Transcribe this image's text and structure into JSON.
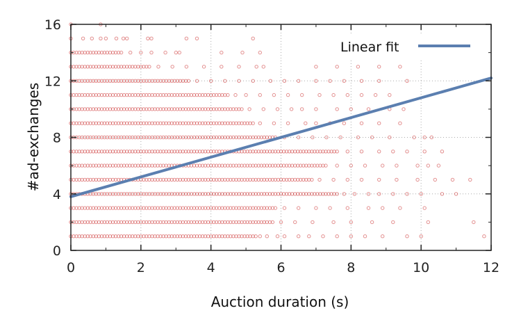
{
  "chart_data": {
    "type": "scatter",
    "xlabel": "Auction duration (s)",
    "ylabel": "#ad-exchanges",
    "xlim": [
      0,
      12
    ],
    "ylim": [
      0,
      16
    ],
    "x_ticks": [
      "0",
      "2",
      "4",
      "6",
      "8",
      "10",
      "12"
    ],
    "y_ticks": [
      "0",
      "4",
      "8",
      "12",
      "16"
    ],
    "grid": true,
    "legend_position": "top-right",
    "point_color": "#cc3333",
    "fit_color": "#5b7fb0",
    "series": [
      {
        "kind": "scatter",
        "levels": [
          {
            "y": 1,
            "dense_to": 5.3,
            "sparse_x": [
              5.4,
              5.6,
              5.9,
              6.1,
              6.5,
              6.8,
              7.2,
              7.6,
              8.0,
              8.4,
              8.9,
              9.6,
              10.0,
              11.8
            ]
          },
          {
            "y": 2,
            "dense_to": 5.8,
            "sparse_x": [
              6.0,
              6.4,
              6.9,
              7.5,
              8.0,
              8.6,
              9.2,
              10.2,
              11.5
            ]
          },
          {
            "y": 3,
            "dense_to": 5.9,
            "sparse_x": [
              6.1,
              6.5,
              7.0,
              7.4,
              7.9,
              8.5,
              8.9,
              9.4,
              10.1
            ]
          },
          {
            "y": 4,
            "dense_to": 7.6,
            "sparse_x": [
              7.8,
              8.1,
              8.5,
              8.8,
              9.2,
              9.6,
              10.0,
              10.6,
              11.0
            ]
          },
          {
            "y": 5,
            "dense_to": 6.9,
            "sparse_x": [
              7.1,
              7.5,
              7.9,
              8.3,
              8.8,
              9.3,
              9.9,
              10.4,
              10.9,
              11.4
            ]
          },
          {
            "y": 6,
            "dense_to": 7.3,
            "sparse_x": [
              7.6,
              8.0,
              8.4,
              8.9,
              9.3,
              9.9,
              10.2,
              10.5
            ]
          },
          {
            "y": 7,
            "dense_to": 7.6,
            "sparse_x": [
              7.9,
              8.3,
              8.8,
              9.2,
              9.6,
              10.1,
              10.6
            ]
          },
          {
            "y": 8,
            "dense_to": 5.9,
            "sparse_x": [
              6.1,
              6.5,
              6.9,
              7.3,
              7.7,
              8.2,
              8.6,
              9.1,
              9.8,
              10.1,
              10.3
            ]
          },
          {
            "y": 9,
            "dense_to": 5.2,
            "sparse_x": [
              5.4,
              5.8,
              6.2,
              6.7,
              7.0,
              7.4,
              7.8,
              8.3,
              8.8,
              9.4
            ]
          },
          {
            "y": 10,
            "dense_to": 4.9,
            "sparse_x": [
              5.1,
              5.5,
              5.9,
              6.3,
              6.6,
              7.0,
              7.6,
              8.0,
              8.5,
              9.1,
              9.5
            ]
          },
          {
            "y": 11,
            "dense_to": 4.5,
            "sparse_x": [
              4.7,
              5.0,
              5.4,
              5.8,
              6.2,
              6.6,
              7.1,
              7.5,
              7.9,
              8.3,
              8.7,
              9.1
            ]
          },
          {
            "y": 12,
            "dense_to": 3.4,
            "sparse_x": [
              3.6,
              4.0,
              4.4,
              4.8,
              5.2,
              5.7,
              6.1,
              6.5,
              7.0,
              7.4,
              7.8,
              8.3,
              8.8,
              9.6
            ]
          },
          {
            "y": 13,
            "dense_to": 2.3,
            "sparse_x": [
              2.5,
              2.9,
              3.3,
              3.8,
              4.3,
              4.8,
              5.3,
              5.5,
              7.0,
              7.6,
              8.2,
              8.8,
              9.4
            ]
          },
          {
            "y": 14,
            "dense_to": 1.5,
            "sparse_x": [
              1.7,
              2.0,
              2.3,
              2.7,
              3.0,
              3.1,
              4.3,
              4.9,
              5.4
            ]
          },
          {
            "y": 15,
            "dense_to": 0.0,
            "sparse_x": [
              0.35,
              0.6,
              0.85,
              1.0,
              1.3,
              1.5,
              1.6,
              2.2,
              2.3,
              3.3,
              3.6,
              5.2
            ]
          },
          {
            "y": 16,
            "dense_to": 0.0,
            "sparse_x": [
              0.85
            ]
          }
        ]
      },
      {
        "name": "Linear fit",
        "kind": "line",
        "x": [
          0,
          12
        ],
        "y": [
          3.8,
          12.2
        ]
      }
    ]
  }
}
